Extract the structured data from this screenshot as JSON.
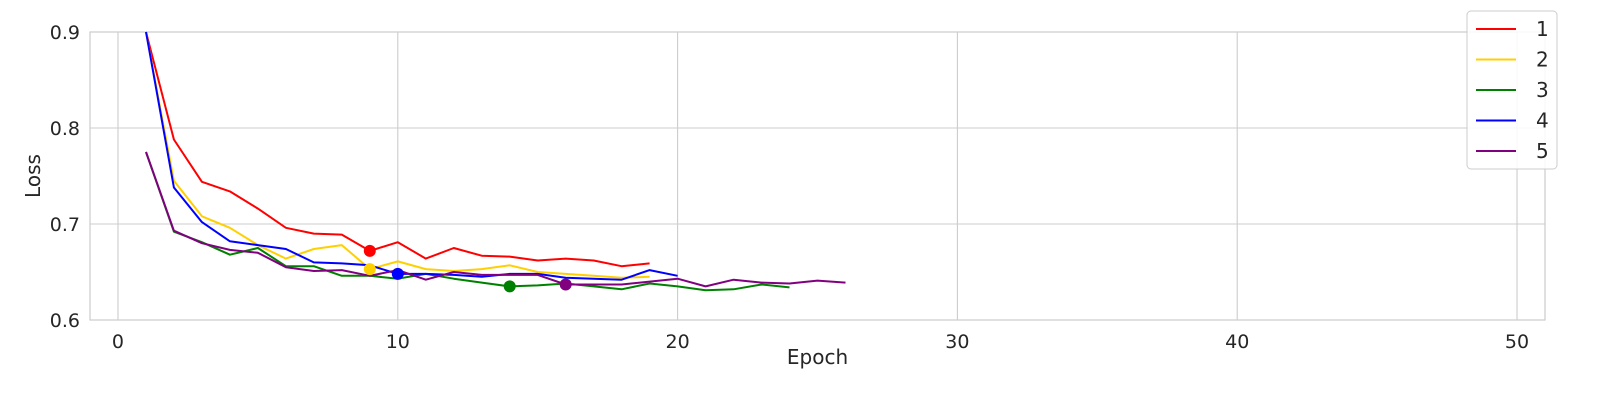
{
  "chart_data": {
    "type": "line",
    "xlabel": "Epoch",
    "ylabel": "Loss",
    "xlim": [
      -1,
      51
    ],
    "ylim": [
      0.6,
      0.9
    ],
    "xticks": [
      0,
      10,
      20,
      30,
      40,
      50
    ],
    "yticks": [
      0.6,
      0.7,
      0.8,
      0.9
    ],
    "xtick_labels": [
      "0",
      "10",
      "20",
      "30",
      "40",
      "50"
    ],
    "ytick_labels": [
      "0.6",
      "0.7",
      "0.8",
      "0.9"
    ],
    "grid": true,
    "legend_position": "top-right",
    "series": [
      {
        "name": "1",
        "color": "#ff0000",
        "x": [
          1,
          2,
          3,
          4,
          5,
          6,
          7,
          8,
          9,
          10,
          11,
          12,
          13,
          14,
          15,
          16,
          17,
          18,
          19
        ],
        "y": [
          0.902,
          0.788,
          0.744,
          0.734,
          0.716,
          0.696,
          0.69,
          0.689,
          0.672,
          0.681,
          0.664,
          0.675,
          0.667,
          0.666,
          0.662,
          0.664,
          0.662,
          0.656,
          0.659
        ],
        "marker": {
          "x": 9,
          "y": 0.672
        }
      },
      {
        "name": "2",
        "color": "#ffd000",
        "x": [
          1,
          2,
          3,
          4,
          5,
          6,
          7,
          8,
          9,
          10,
          11,
          12,
          13,
          14,
          15,
          16,
          17,
          18,
          19
        ],
        "y": [
          0.902,
          0.745,
          0.708,
          0.696,
          0.678,
          0.664,
          0.674,
          0.678,
          0.653,
          0.661,
          0.653,
          0.651,
          0.653,
          0.657,
          0.65,
          0.648,
          0.646,
          0.644,
          0.645
        ],
        "marker": {
          "x": 9,
          "y": 0.653
        }
      },
      {
        "name": "3",
        "color": "#008000",
        "x": [
          1,
          2,
          3,
          4,
          5,
          6,
          7,
          8,
          9,
          10,
          11,
          12,
          13,
          14,
          15,
          16,
          17,
          18,
          19,
          20,
          21,
          22,
          23,
          24
        ],
        "y": [
          0.775,
          0.692,
          0.681,
          0.668,
          0.675,
          0.656,
          0.656,
          0.646,
          0.646,
          0.643,
          0.648,
          0.643,
          0.639,
          0.635,
          0.636,
          0.638,
          0.635,
          0.632,
          0.638,
          0.635,
          0.631,
          0.632,
          0.637,
          0.634
        ],
        "marker": {
          "x": 14,
          "y": 0.635
        }
      },
      {
        "name": "4",
        "color": "#0000ff",
        "x": [
          1,
          2,
          3,
          4,
          5,
          6,
          7,
          8,
          9,
          10,
          11,
          12,
          13,
          14,
          15,
          16,
          17,
          18,
          19,
          20
        ],
        "y": [
          0.902,
          0.738,
          0.702,
          0.682,
          0.678,
          0.674,
          0.66,
          0.659,
          0.657,
          0.648,
          0.648,
          0.647,
          0.645,
          0.648,
          0.648,
          0.644,
          0.643,
          0.642,
          0.652,
          0.646
        ],
        "marker": {
          "x": 10,
          "y": 0.648
        }
      },
      {
        "name": "5",
        "color": "#800080",
        "x": [
          1,
          2,
          3,
          4,
          5,
          6,
          7,
          8,
          9,
          10,
          11,
          12,
          13,
          14,
          15,
          16,
          17,
          18,
          19,
          20,
          21,
          22,
          23,
          24,
          25,
          26
        ],
        "y": [
          0.775,
          0.693,
          0.68,
          0.673,
          0.67,
          0.655,
          0.651,
          0.652,
          0.646,
          0.652,
          0.642,
          0.65,
          0.647,
          0.647,
          0.647,
          0.637,
          0.637,
          0.637,
          0.64,
          0.643,
          0.635,
          0.642,
          0.639,
          0.638,
          0.641,
          0.639
        ],
        "marker": {
          "x": 16,
          "y": 0.637
        }
      }
    ]
  }
}
